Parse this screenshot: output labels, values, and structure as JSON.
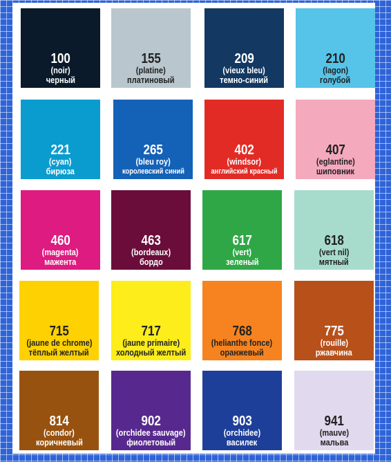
{
  "swatches": [
    {
      "code": "100",
      "fr": "(noir)",
      "ru": "черный",
      "color": "#0b1a2a",
      "dark_text": false
    },
    {
      "code": "155",
      "fr": "(platine)",
      "ru": "платиновый",
      "color": "#b9c6ce",
      "dark_text": true
    },
    {
      "code": "209",
      "fr": "(vieux bleu)",
      "ru": "темно-синий",
      "color": "#133862",
      "dark_text": false
    },
    {
      "code": "210",
      "fr": "(lagon)",
      "ru": "голубой",
      "color": "#56c3e8",
      "dark_text": true
    },
    {
      "code": "221",
      "fr": "(cyan)",
      "ru": "бирюза",
      "color": "#0b9ccf",
      "dark_text": false
    },
    {
      "code": "265",
      "fr": "(bleu roy)",
      "ru": "королевский синий",
      "color": "#1462b7",
      "dark_text": false
    },
    {
      "code": "402",
      "fr": "(windsor)",
      "ru": "английский красный",
      "color": "#e32b25",
      "dark_text": false
    },
    {
      "code": "407",
      "fr": "(eglantine)",
      "ru": "шиповник",
      "color": "#f4a9bd",
      "dark_text": true
    },
    {
      "code": "460",
      "fr": "(magenta)",
      "ru": "мажента",
      "color": "#de1b80",
      "dark_text": false
    },
    {
      "code": "463",
      "fr": "(bordeaux)",
      "ru": "бордо",
      "color": "#6b0d3b",
      "dark_text": false
    },
    {
      "code": "617",
      "fr": "(vert)",
      "ru": "зеленый",
      "color": "#2fa746",
      "dark_text": false
    },
    {
      "code": "618",
      "fr": "(vert nil)",
      "ru": "мятный",
      "color": "#a7dccc",
      "dark_text": true
    },
    {
      "code": "715",
      "fr": "(jaune de chrome)",
      "ru": "тёплый желтый",
      "color": "#fdd102",
      "dark_text": true
    },
    {
      "code": "717",
      "fr": "(jaune primaire)",
      "ru": "холодный желтый",
      "color": "#fced1b",
      "dark_text": true
    },
    {
      "code": "768",
      "fr": "(helianthe fonce)",
      "ru": "оранжевый",
      "color": "#f6831f",
      "dark_text": true
    },
    {
      "code": "775",
      "fr": "(rouille)",
      "ru": "ржавчина",
      "color": "#b8501a",
      "dark_text": false
    },
    {
      "code": "814",
      "fr": "(condor)",
      "ru": "коричневый",
      "color": "#98520f",
      "dark_text": false
    },
    {
      "code": "902",
      "fr": "(orchidee sauvage)",
      "ru": "фиолетовый",
      "color": "#57298e",
      "dark_text": false
    },
    {
      "code": "903",
      "fr": "(orchidee)",
      "ru": "василек",
      "color": "#1e3f99",
      "dark_text": false
    },
    {
      "code": "941",
      "fr": "(mauve)",
      "ru": "мальва",
      "color": "#e1d9ee",
      "dark_text": true
    }
  ]
}
